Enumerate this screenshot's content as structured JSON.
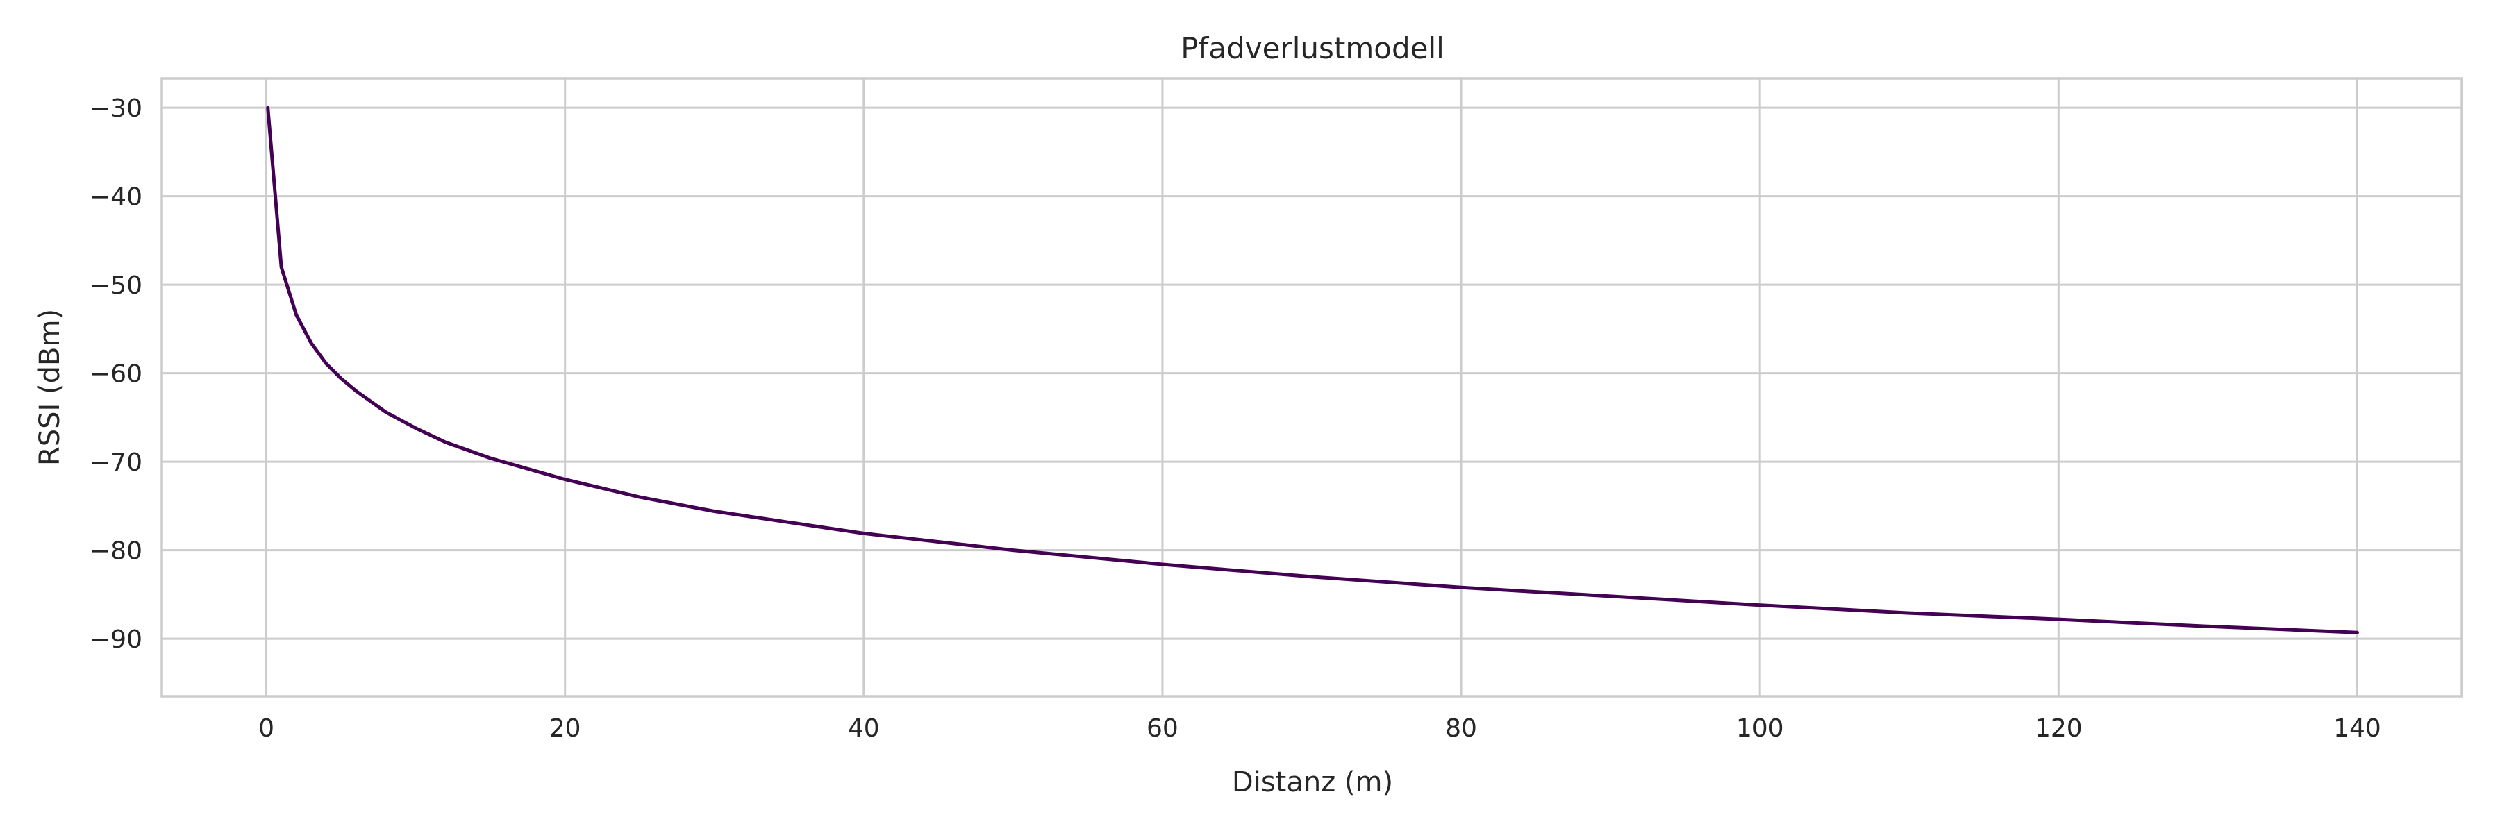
{
  "chart_data": {
    "type": "line",
    "title": "Pfadverlustmodell",
    "xlabel": "Distanz (m)",
    "ylabel": "RSSI (dBm)",
    "xlim": [
      -7,
      147
    ],
    "ylim": [
      -96.5,
      -26.7
    ],
    "xticks": [
      0,
      20,
      40,
      60,
      80,
      100,
      120,
      140
    ],
    "yticks": [
      -30,
      -40,
      -50,
      -60,
      -70,
      -80,
      -90
    ],
    "xtick_labels": [
      "0",
      "20",
      "40",
      "60",
      "80",
      "100",
      "120",
      "140"
    ],
    "ytick_labels": [
      "−30",
      "−40",
      "−50",
      "−60",
      "−70",
      "−80",
      "−90"
    ],
    "grid": true,
    "series": [
      {
        "color": "#440154",
        "x": [
          0.1,
          1,
          2,
          3,
          4,
          5,
          6,
          8,
          10,
          12,
          15,
          20,
          25,
          30,
          40,
          50,
          60,
          70,
          80,
          90,
          100,
          110,
          120,
          130,
          140
        ],
        "y": [
          -30,
          -48,
          -53.4,
          -56.6,
          -58.9,
          -60.6,
          -62,
          -64.4,
          -66.2,
          -67.8,
          -69.6,
          -72,
          -74,
          -75.6,
          -78.1,
          -80,
          -81.6,
          -83,
          -84.2,
          -85.2,
          -86.2,
          -87.1,
          -87.8,
          -88.6,
          -89.3
        ]
      }
    ]
  }
}
